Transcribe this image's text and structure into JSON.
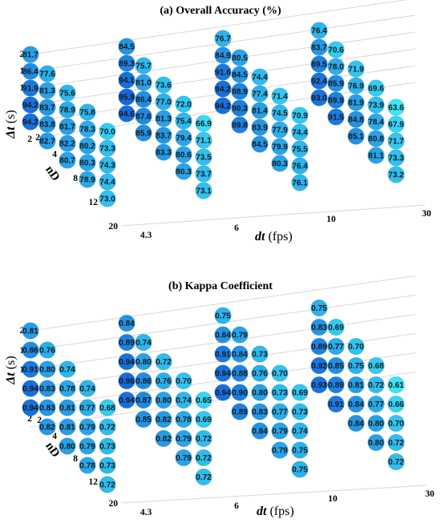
{
  "chart_data": [
    {
      "type": "scatter",
      "title": "(a) Overall Accuracy (%)",
      "xlabel_text": "dt",
      "xlabel_unit": "(fps)",
      "ylabel_text": "Δt",
      "ylabel_unit": "(s)",
      "zlabel_text": "nD",
      "dt_ticks": [
        "4.3",
        "6",
        "10",
        "30"
      ],
      "delta_t_ticks": [
        "20",
        "15",
        "10",
        "7",
        "5",
        "2"
      ],
      "nd_ticks": [
        "2",
        "4",
        "8",
        "12",
        "20"
      ],
      "values": [
        [
          "81.7",
          "86.4",
          "91.9",
          "94.2",
          "94.2",
          "77.6",
          "81.3",
          "83.7",
          "83.8",
          "82.7",
          "75.6",
          "78.9",
          "81.7",
          "82.2",
          "80.7",
          "75.8",
          "78.3",
          "80.2",
          "80.3",
          "78.9",
          "70.0",
          "73.3",
          "74.3",
          "74.4",
          "73.0"
        ],
        [
          "84.5",
          "89.3",
          "94.1",
          "95.9",
          "94.6",
          "75.7",
          "81.0",
          "86.4",
          "87.6",
          "85.9",
          "73.6",
          "77.0",
          "81.3",
          "83.7",
          "83.3",
          "72.0",
          "75.4",
          "79.4",
          "80.6",
          "80.3",
          "66.9",
          "71.1",
          "73.5",
          "73.7",
          "73.1"
        ],
        [
          "76.7",
          "84.9",
          "91.6",
          "94.2",
          "94.2",
          "80.5",
          "84.5",
          "88.9",
          "90.3",
          "89.8",
          "74.4",
          "77.4",
          "81.4",
          "83.9",
          "84.5",
          "71.4",
          "74.5",
          "77.9",
          "79.9",
          "80.3",
          "70.9",
          "74.4",
          "75.5",
          "76.4",
          "76.1"
        ],
        [
          "76.4",
          "83.7",
          "89.5",
          "92.4",
          "93.0",
          "70.6",
          "78.0",
          "85.9",
          "89.9",
          "91.5",
          "71.9",
          "76.9",
          "81.9",
          "84.8",
          "85.1",
          "69.6",
          "73.9",
          "78.4",
          "80.8",
          "81.1",
          "63.6",
          "67.9",
          "71.7",
          "73.3",
          "73.2"
        ]
      ]
    },
    {
      "type": "scatter",
      "title": "(b) Kappa Coefficient",
      "xlabel_text": "dt",
      "xlabel_unit": "(fps)",
      "ylabel_text": "Δt",
      "ylabel_unit": "(s)",
      "zlabel_text": "nD",
      "dt_ticks": [
        "4.3",
        "6",
        "10",
        "30"
      ],
      "delta_t_ticks": [
        "20",
        "15",
        "10",
        "7",
        "5",
        "2"
      ],
      "nd_ticks": [
        "2",
        "4",
        "8",
        "12",
        "20"
      ],
      "values": [
        [
          "0.81",
          "0.86",
          "0.91",
          "0.94",
          "0.94",
          "0.76",
          "0.80",
          "0.83",
          "0.83",
          "0.82",
          "0.74",
          "0.78",
          "0.81",
          "0.81",
          "0.80",
          "0.74",
          "0.77",
          "0.79",
          "0.79",
          "0.78",
          "0.68",
          "0.72",
          "0.73",
          "0.73",
          "0.72"
        ],
        [
          "0.84",
          "0.89",
          "0.94",
          "0.96",
          "0.94",
          "0.74",
          "0.80",
          "0.86",
          "0.87",
          "0.85",
          "0.72",
          "0.76",
          "0.80",
          "0.82",
          "0.82",
          "0.70",
          "0.74",
          "0.78",
          "0.79",
          "0.79",
          "0.65",
          "0.69",
          "0.72",
          "0.72",
          "0.72"
        ],
        [
          "0.75",
          "0.84",
          "0.91",
          "0.94",
          "0.94",
          "0.79",
          "0.84",
          "0.88",
          "0.90",
          "0.89",
          "0.73",
          "0.76",
          "0.80",
          "0.83",
          "0.84",
          "0.70",
          "0.73",
          "0.77",
          "0.79",
          "0.79",
          "0.69",
          "0.73",
          "0.74",
          "0.75",
          "0.75"
        ],
        [
          "0.75",
          "0.83",
          "0.89",
          "0.92",
          "0.93",
          "0.69",
          "0.77",
          "0.85",
          "0.89",
          "0.91",
          "0.70",
          "0.75",
          "0.81",
          "0.84",
          "0.84",
          "0.68",
          "0.72",
          "0.77",
          "0.80",
          "0.80",
          "0.61",
          "0.66",
          "0.70",
          "0.72",
          "0.72"
        ]
      ]
    }
  ]
}
